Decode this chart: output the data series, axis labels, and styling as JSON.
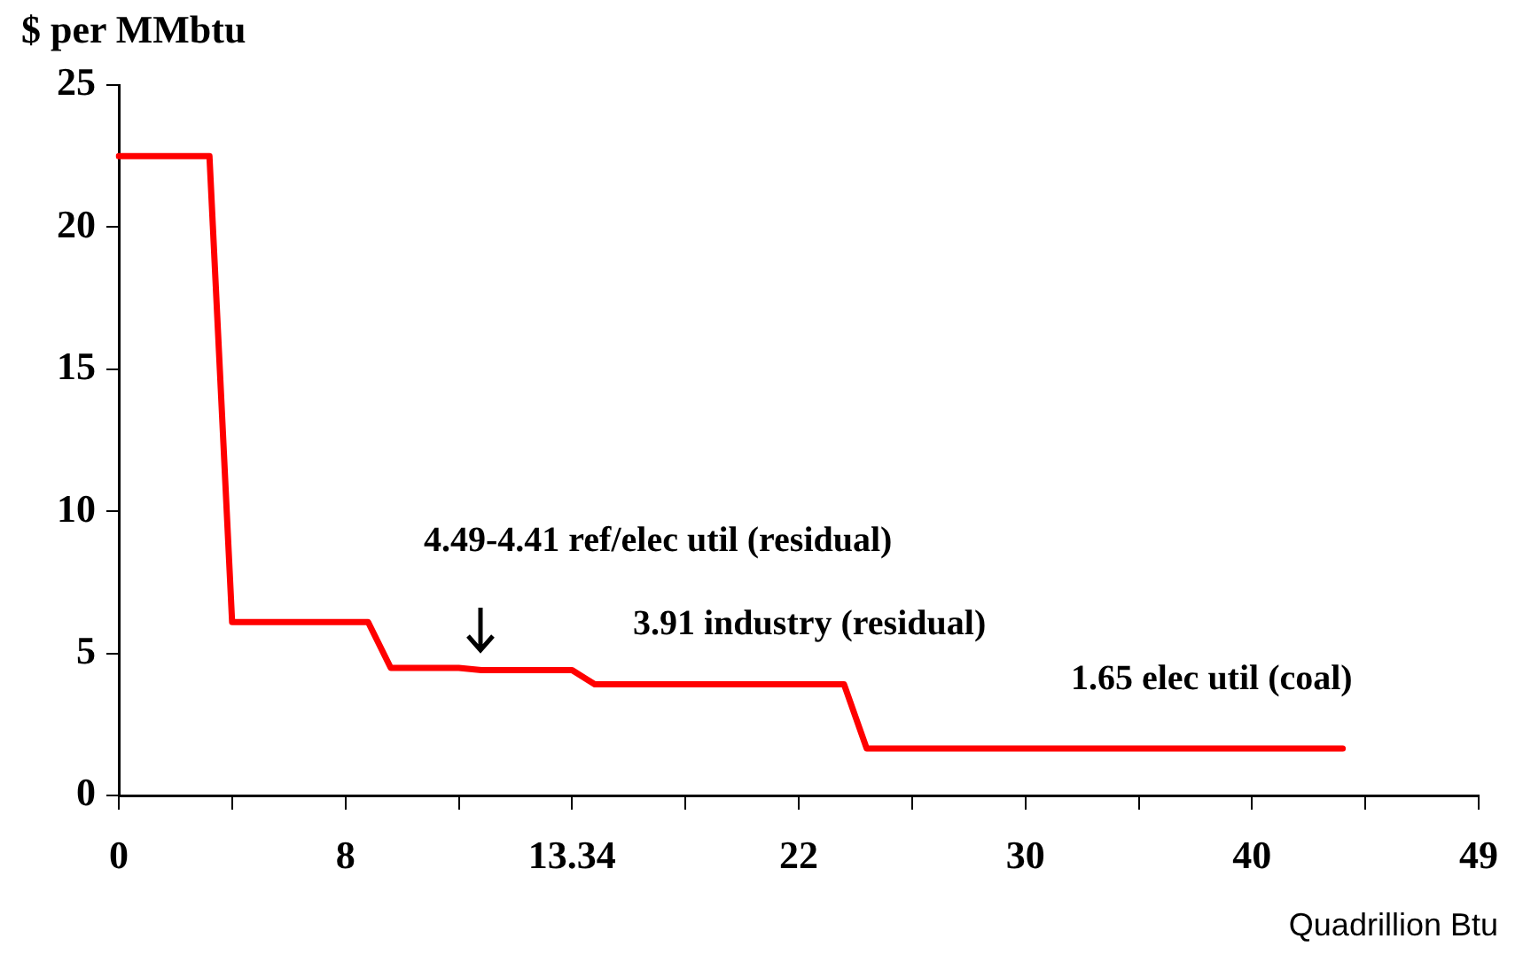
{
  "chart_data": {
    "type": "line",
    "xlabel": "Quadrillion Btu",
    "ylabel": "$ per MMbtu",
    "categories": [
      "0",
      null,
      null,
      null,
      null,
      null,
      null,
      null,
      null,
      null,
      "8",
      null,
      null,
      null,
      null,
      null,
      null,
      null,
      null,
      null,
      "13.34",
      null,
      null,
      null,
      null,
      null,
      null,
      null,
      null,
      null,
      "22",
      null,
      null,
      null,
      null,
      null,
      null,
      null,
      null,
      null,
      "30",
      null,
      null,
      null,
      null,
      null,
      null,
      null,
      null,
      null,
      "40",
      null,
      null,
      null,
      null,
      null,
      null,
      null,
      null,
      null,
      "49"
    ],
    "series": [
      {
        "color": "#ff0000",
        "values": [
          22.5,
          22.5,
          22.5,
          22.5,
          22.5,
          6.1,
          6.1,
          6.1,
          6.1,
          6.1,
          6.1,
          6.1,
          4.49,
          4.49,
          4.49,
          4.49,
          4.41,
          4.41,
          4.41,
          4.41,
          4.41,
          3.91,
          3.91,
          3.91,
          3.91,
          3.91,
          3.91,
          3.91,
          3.91,
          3.91,
          3.91,
          3.91,
          3.91,
          1.65,
          1.65,
          1.65,
          1.65,
          1.65,
          1.65,
          1.65,
          1.65,
          1.65,
          1.65,
          1.65,
          1.65,
          1.65,
          1.65,
          1.65,
          1.65,
          1.65,
          1.65,
          1.65,
          1.65,
          1.65,
          1.65,
          null,
          null,
          null,
          null,
          null,
          null
        ]
      }
    ],
    "ylim": [
      0,
      25
    ],
    "yticks": [
      0,
      5,
      10,
      15,
      20,
      25
    ],
    "grid": false,
    "legend": false,
    "marker": "none",
    "line_style": "solid",
    "annotations": [
      "4.49-4.41 ref/elec util (residual)",
      "3.91 industry (residual)",
      "1.65 elec util (coal)"
    ]
  }
}
